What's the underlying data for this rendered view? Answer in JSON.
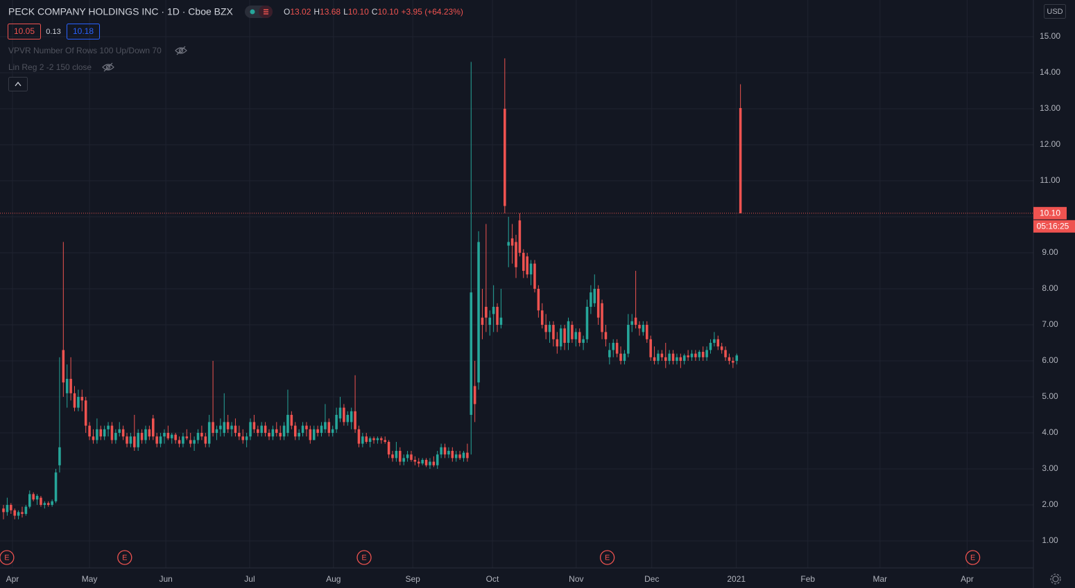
{
  "header": {
    "title": "PECK COMPANY HOLDINGS INC · 1D · Cboe BZX",
    "ohlc": [
      {
        "label": "O",
        "value": "13.02"
      },
      {
        "label": "H",
        "value": "13.68"
      },
      {
        "label": "L",
        "value": "10.10"
      },
      {
        "label": "C",
        "value": "10.10"
      }
    ],
    "change": "+3.95 (+64.23%)",
    "bid": "10.05",
    "spread": "0.13",
    "ask": "10.18",
    "indicators": [
      "VPVR Number Of Rows 100 Up/Down 70",
      "Lin Reg 2 -2 150 close"
    ],
    "currency": "USD",
    "countdown": "05:16:25"
  },
  "chart_data": {
    "type": "candlestick",
    "up_color": "#26a69a",
    "down_color": "#ef5350",
    "grid": true,
    "ylim": [
      0.25,
      16.02
    ],
    "yticks": [
      {
        "value": 1,
        "label": "1.00"
      },
      {
        "value": 2,
        "label": "2.00"
      },
      {
        "value": 3,
        "label": "3.00"
      },
      {
        "value": 4,
        "label": "4.00"
      },
      {
        "value": 5,
        "label": "5.00"
      },
      {
        "value": 6,
        "label": "6.00"
      },
      {
        "value": 7,
        "label": "7.00"
      },
      {
        "value": 8,
        "label": "8.00"
      },
      {
        "value": 9,
        "label": "9.00"
      },
      {
        "value": 10,
        "label": "10.00"
      },
      {
        "value": 11,
        "label": "11.00"
      },
      {
        "value": 12,
        "label": "12.00"
      },
      {
        "value": 13,
        "label": "13.00"
      },
      {
        "value": 14,
        "label": "14.00"
      },
      {
        "value": 15,
        "label": "15.00"
      }
    ],
    "xlim": [
      -0.93,
      275.3
    ],
    "xticks": [
      {
        "value": 2.4,
        "label": "Apr"
      },
      {
        "value": 23.0,
        "label": "May"
      },
      {
        "value": 43.4,
        "label": "Jun"
      },
      {
        "value": 65.8,
        "label": "Jul"
      },
      {
        "value": 88.2,
        "label": "Aug"
      },
      {
        "value": 109.4,
        "label": "Sep"
      },
      {
        "value": 130.7,
        "label": "Oct"
      },
      {
        "value": 153.1,
        "label": "Nov"
      },
      {
        "value": 173.3,
        "label": "Dec"
      },
      {
        "value": 195.9,
        "label": "2021"
      },
      {
        "value": 215.0,
        "label": "Feb"
      },
      {
        "value": 234.3,
        "label": "Mar"
      },
      {
        "value": 257.6,
        "label": "Apr"
      }
    ],
    "earnings": [
      {
        "value": 0.9,
        "label": "E"
      },
      {
        "value": 32.4,
        "label": "E"
      },
      {
        "value": 96.4,
        "label": "E"
      },
      {
        "value": 161.4,
        "label": "E"
      },
      {
        "value": 259.1,
        "label": "E"
      }
    ],
    "last_price": {
      "value": 10.1,
      "label": "10.10"
    },
    "open": [
      1.9,
      1.8,
      2.0,
      1.85,
      1.7,
      1.8,
      1.75,
      1.95,
      2.3,
      2.15,
      2.2,
      2.0,
      2.05,
      2.0,
      2.1,
      3.1,
      6.3,
      5.1,
      5.5,
      5.1,
      4.7,
      5.0,
      4.9,
      4.2,
      3.9,
      3.8,
      4.1,
      3.9,
      4.1,
      4.2,
      3.8,
      4.0,
      4.1,
      3.9,
      3.7,
      3.9,
      3.6,
      4.0,
      3.8,
      4.1,
      4.4,
      3.9,
      3.7,
      3.9,
      4.0,
      3.85,
      3.95,
      3.8,
      3.7,
      3.9,
      3.8,
      3.7,
      3.8,
      4.0,
      3.9,
      3.7,
      4.3,
      4.0,
      4.1,
      4.0,
      4.3,
      4.1,
      4.2,
      4.0,
      3.9,
      3.8,
      3.9,
      4.3,
      4.1,
      4.0,
      4.2,
      4.0,
      3.9,
      4.1,
      4.0,
      3.9,
      4.0,
      4.5,
      4.2,
      3.9,
      4.0,
      4.2,
      4.1,
      3.8,
      4.1,
      4.0,
      4.1,
      4.3,
      4.0,
      4.1,
      4.4,
      4.7,
      4.3,
      4.3,
      4.6,
      4.1,
      3.7,
      3.9,
      3.75,
      3.85,
      3.8,
      3.85,
      3.8,
      3.75,
      3.4,
      3.3,
      3.5,
      3.2,
      3.3,
      3.4,
      3.25,
      3.2,
      3.15,
      3.25,
      3.1,
      3.2,
      3.1,
      3.4,
      3.6,
      3.4,
      3.5,
      3.3,
      3.4,
      3.3,
      3.45,
      4.5,
      5.3,
      5.4,
      7.2,
      7.5,
      7.0,
      7.3,
      7.5,
      7.0,
      13.0,
      9.2,
      9.4,
      9.3,
      9.9,
      9.0,
      8.9,
      8.4,
      8.7,
      8.0,
      7.4,
      7.0,
      6.8,
      7.0,
      6.6,
      6.4,
      6.9,
      6.5,
      7.0,
      6.6,
      6.8,
      6.5,
      6.6,
      7.5,
      7.6,
      8.0,
      7.6,
      6.8,
      6.1,
      6.3,
      6.5,
      6.2,
      6.0,
      6.2,
      7.0,
      7.2,
      7.0,
      6.8,
      7.0,
      6.6,
      6.1,
      6.0,
      6.2,
      6.1,
      6.0,
      6.2,
      6.0,
      6.1,
      6.0,
      6.15,
      6.1,
      6.2,
      6.1,
      6.25,
      6.1,
      6.3,
      6.5,
      6.6,
      6.4,
      6.3,
      6.1,
      6.0,
      6.0,
      13.02
    ],
    "high": [
      2.0,
      2.2,
      2.05,
      1.9,
      1.85,
      1.95,
      2.0,
      2.4,
      2.35,
      2.3,
      2.25,
      2.1,
      2.1,
      2.15,
      3.0,
      6.1,
      9.3,
      5.9,
      6.1,
      5.3,
      5.2,
      5.2,
      5.0,
      4.3,
      4.1,
      4.4,
      4.2,
      4.2,
      4.3,
      4.3,
      4.1,
      4.3,
      4.2,
      4.0,
      4.0,
      4.5,
      4.1,
      4.1,
      4.2,
      4.2,
      4.5,
      4.0,
      4.0,
      4.1,
      4.2,
      4.0,
      4.0,
      3.9,
      4.0,
      4.1,
      4.0,
      3.9,
      4.1,
      4.2,
      4.0,
      4.5,
      6.0,
      4.2,
      4.4,
      5.1,
      4.5,
      4.3,
      4.4,
      4.2,
      4.1,
      4.0,
      4.4,
      4.5,
      4.2,
      4.3,
      4.3,
      4.1,
      4.2,
      4.3,
      4.2,
      4.3,
      5.2,
      4.6,
      4.3,
      4.1,
      4.3,
      4.3,
      4.2,
      4.2,
      4.2,
      4.3,
      4.8,
      4.4,
      4.2,
      4.7,
      5.0,
      4.8,
      4.6,
      4.7,
      5.6,
      4.2,
      4.0,
      4.0,
      3.9,
      3.9,
      3.9,
      3.9,
      3.9,
      3.8,
      3.5,
      3.75,
      3.6,
      3.4,
      3.5,
      3.5,
      3.35,
      3.3,
      3.3,
      3.3,
      3.3,
      3.35,
      3.5,
      3.7,
      3.7,
      3.6,
      3.6,
      3.5,
      3.5,
      3.5,
      3.7,
      14.3,
      6.0,
      9.6,
      8.0,
      9.8,
      7.4,
      8.1,
      7.6,
      8.0,
      14.4,
      10.0,
      9.8,
      9.5,
      10.1,
      9.1,
      9.0,
      8.8,
      8.8,
      8.1,
      7.6,
      7.3,
      7.1,
      7.1,
      6.8,
      7.0,
      7.0,
      7.2,
      7.1,
      6.9,
      6.9,
      6.7,
      7.7,
      8.1,
      8.4,
      8.1,
      7.7,
      7.0,
      6.5,
      6.6,
      6.6,
      6.4,
      6.3,
      7.3,
      7.3,
      8.5,
      7.1,
      7.1,
      7.1,
      6.7,
      6.4,
      6.3,
      6.3,
      6.5,
      6.3,
      6.3,
      6.2,
      6.2,
      6.2,
      6.3,
      6.3,
      6.3,
      6.3,
      6.4,
      6.4,
      6.6,
      6.8,
      6.7,
      6.5,
      6.4,
      6.2,
      6.1,
      6.2,
      13.68
    ],
    "low": [
      1.6,
      1.7,
      1.75,
      1.6,
      1.6,
      1.65,
      1.7,
      1.9,
      2.1,
      2.0,
      1.95,
      1.9,
      1.95,
      1.95,
      2.05,
      2.9,
      5.0,
      4.7,
      4.9,
      4.6,
      4.6,
      4.6,
      4.0,
      3.8,
      3.7,
      3.7,
      3.8,
      3.8,
      3.9,
      3.7,
      3.7,
      3.9,
      3.8,
      3.6,
      3.6,
      3.5,
      3.5,
      3.7,
      3.7,
      3.8,
      3.8,
      3.6,
      3.6,
      3.7,
      3.8,
      3.7,
      3.7,
      3.6,
      3.6,
      3.8,
      3.6,
      3.5,
      3.7,
      3.8,
      3.6,
      3.6,
      3.9,
      3.8,
      3.9,
      3.9,
      4.0,
      3.9,
      3.9,
      3.8,
      3.7,
      3.6,
      3.8,
      4.0,
      3.9,
      3.9,
      3.9,
      3.8,
      3.8,
      3.9,
      3.8,
      3.8,
      3.9,
      4.1,
      3.8,
      3.8,
      3.9,
      3.9,
      3.7,
      3.8,
      3.9,
      3.9,
      4.0,
      3.9,
      3.9,
      4.0,
      4.3,
      4.2,
      4.2,
      4.1,
      4.0,
      3.6,
      3.6,
      3.7,
      3.6,
      3.7,
      3.7,
      3.7,
      3.7,
      3.3,
      3.2,
      3.2,
      3.1,
      3.1,
      3.2,
      3.2,
      3.1,
      3.05,
      3.1,
      3.05,
      3.0,
      3.05,
      3.0,
      3.3,
      3.3,
      3.3,
      3.2,
      3.2,
      3.25,
      3.2,
      3.2,
      3.4,
      4.3,
      5.2,
      6.6,
      6.8,
      6.7,
      6.8,
      6.8,
      6.9,
      10.1,
      8.6,
      8.7,
      8.3,
      8.9,
      8.3,
      8.3,
      8.1,
      7.9,
      7.2,
      6.9,
      6.6,
      6.5,
      6.4,
      6.2,
      6.3,
      6.3,
      6.3,
      6.5,
      6.4,
      6.4,
      6.3,
      6.5,
      7.3,
      7.5,
      7.0,
      6.6,
      6.4,
      5.9,
      6.1,
      6.1,
      5.9,
      5.9,
      6.1,
      6.8,
      6.9,
      6.7,
      6.7,
      6.5,
      6.0,
      5.9,
      5.9,
      6.0,
      5.8,
      5.9,
      5.9,
      5.9,
      5.8,
      5.9,
      6.0,
      6.0,
      6.0,
      6.0,
      6.0,
      6.0,
      6.2,
      6.4,
      6.3,
      6.2,
      6.0,
      5.9,
      5.8,
      5.9,
      10.1
    ],
    "close": [
      1.8,
      2.0,
      1.85,
      1.7,
      1.8,
      1.75,
      1.95,
      2.3,
      2.15,
      2.25,
      2.0,
      2.05,
      2.0,
      2.1,
      2.9,
      3.6,
      5.4,
      5.5,
      5.1,
      4.7,
      5.0,
      4.9,
      4.2,
      3.9,
      3.8,
      4.1,
      3.9,
      4.1,
      4.2,
      3.8,
      4.0,
      4.1,
      3.9,
      3.7,
      3.9,
      3.6,
      4.0,
      3.8,
      4.1,
      3.9,
      3.9,
      3.7,
      3.9,
      4.0,
      3.85,
      3.95,
      3.8,
      3.7,
      3.9,
      3.85,
      3.7,
      3.8,
      4.0,
      3.9,
      3.7,
      4.3,
      4.0,
      4.1,
      4.2,
      4.3,
      4.1,
      4.2,
      4.0,
      3.9,
      3.8,
      3.9,
      4.3,
      4.1,
      4.0,
      4.2,
      4.0,
      3.9,
      4.1,
      4.0,
      3.9,
      4.2,
      4.5,
      4.2,
      3.9,
      4.0,
      4.2,
      4.1,
      3.8,
      4.1,
      4.0,
      4.2,
      4.3,
      4.0,
      4.1,
      4.5,
      4.7,
      4.3,
      4.5,
      4.6,
      4.1,
      3.7,
      3.9,
      3.75,
      3.85,
      3.8,
      3.85,
      3.8,
      3.75,
      3.4,
      3.3,
      3.5,
      3.2,
      3.3,
      3.4,
      3.25,
      3.2,
      3.15,
      3.25,
      3.1,
      3.2,
      3.1,
      3.4,
      3.6,
      3.4,
      3.5,
      3.3,
      3.4,
      3.3,
      3.45,
      3.3,
      7.9,
      4.8,
      9.3,
      7.0,
      7.2,
      7.2,
      7.5,
      7.0,
      7.2,
      10.3,
      9.3,
      9.2,
      8.6,
      9.0,
      8.5,
      8.4,
      8.7,
      8.0,
      7.4,
      7.0,
      6.8,
      7.0,
      6.6,
      6.4,
      6.9,
      6.5,
      7.1,
      6.6,
      6.8,
      6.5,
      6.6,
      7.5,
      7.9,
      8.0,
      7.2,
      6.8,
      6.6,
      6.3,
      6.5,
      6.2,
      6.0,
      6.2,
      7.0,
      7.1,
      7.0,
      6.9,
      7.0,
      6.6,
      6.1,
      6.0,
      6.2,
      6.1,
      6.0,
      6.2,
      6.0,
      6.1,
      6.0,
      6.15,
      6.1,
      6.2,
      6.1,
      6.25,
      6.1,
      6.3,
      6.5,
      6.6,
      6.4,
      6.3,
      6.1,
      6.0,
      5.95,
      6.15,
      10.1
    ]
  }
}
